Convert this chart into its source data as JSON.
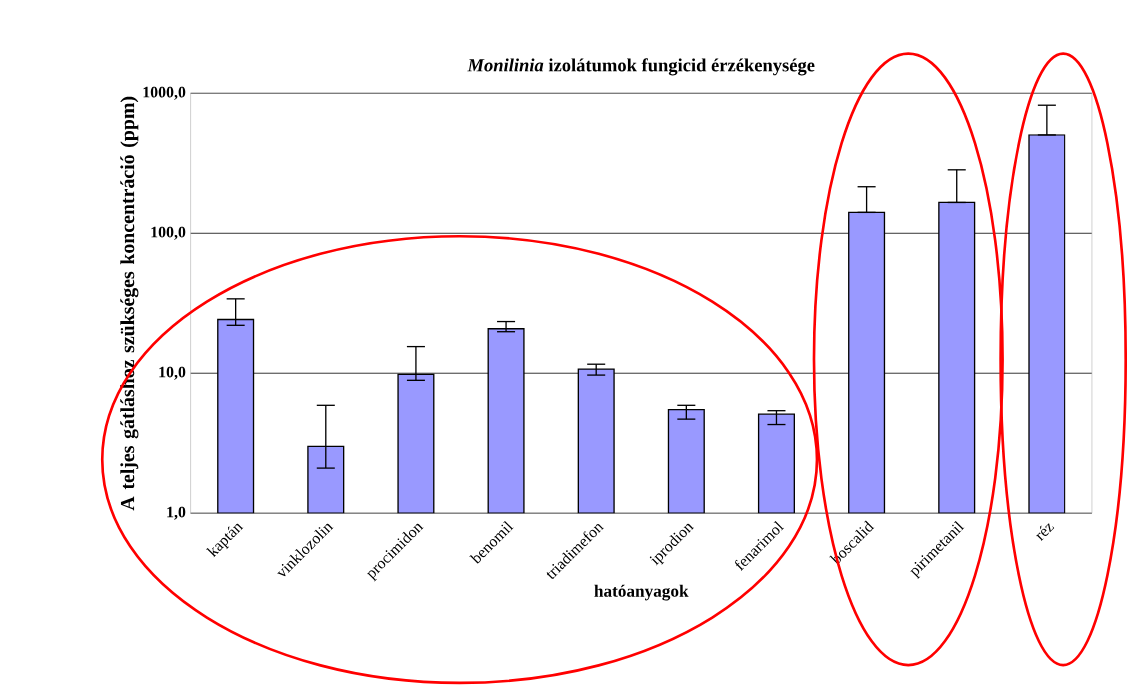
{
  "chart_data": {
    "type": "bar",
    "title": "*Monilinia* izolátumok fungicid érzékenysége",
    "xlabel": "hatóanyagok",
    "ylabel": "A teljes gátláshoz szükséges koncentráció (ppm)",
    "categories": [
      "kaptán",
      "vinklozolin",
      "procimidon",
      "benomil",
      "triadimefon",
      "iprodion",
      "fenarimol",
      "boscalid",
      "pirimetanil",
      "réz"
    ],
    "values": [
      24.2,
      3.0,
      9.8,
      20.8,
      10.7,
      5.5,
      5.1,
      141,
      166,
      504
    ],
    "errors": [
      [
        22,
        34
      ],
      [
        2.1,
        5.9
      ],
      [
        8.9,
        15.5
      ],
      [
        19.8,
        23.4
      ],
      [
        9.7,
        11.6
      ],
      [
        4.7,
        5.9
      ],
      [
        4.3,
        5.4
      ],
      [
        141,
        215
      ],
      [
        166,
        284
      ],
      [
        504,
        822
      ]
    ],
    "color": "#9999ff",
    "log": "y",
    "grid": "y",
    "ylim": [
      1,
      1000
    ],
    "yticks": [
      {
        "value": 1,
        "label": "1,0"
      },
      {
        "value": 10,
        "label": "10,0"
      },
      {
        "value": 100,
        "label": "100,0"
      },
      {
        "value": 1000,
        "label": "1000,0"
      }
    ]
  }
}
